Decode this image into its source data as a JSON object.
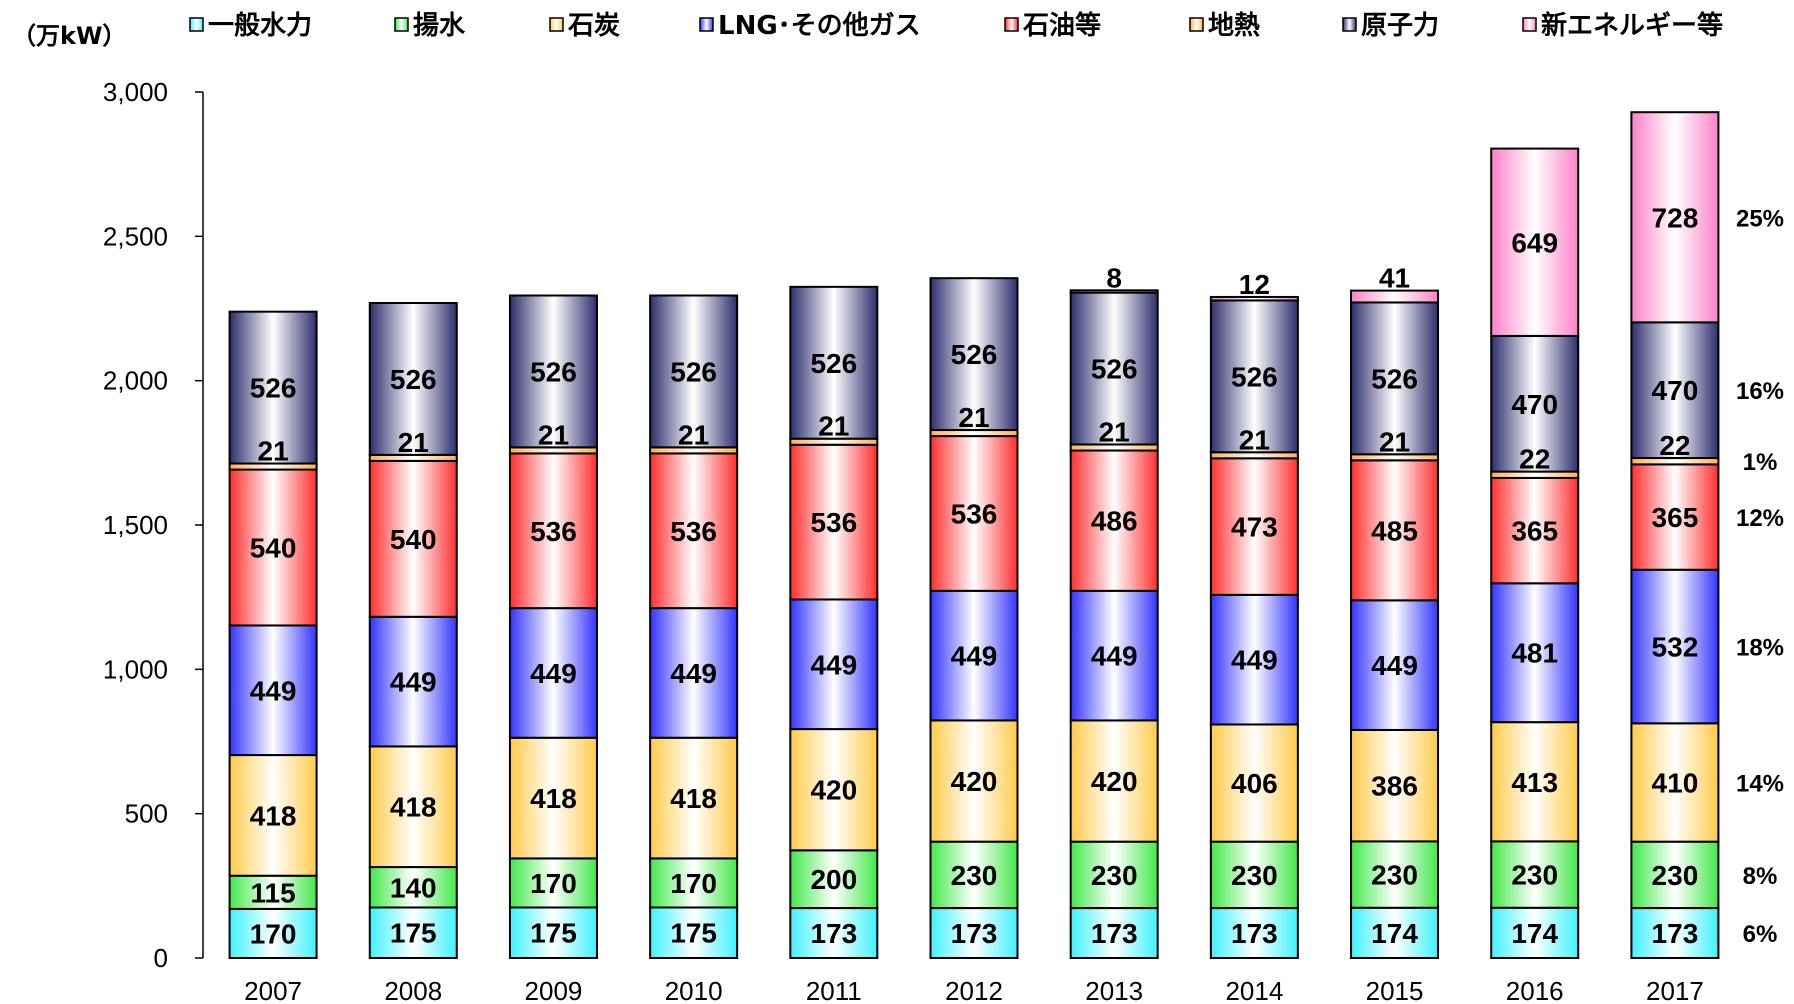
{
  "chart_data": {
    "type": "bar",
    "stacked": true,
    "unit_label": "（万kW）",
    "categories": [
      "2007",
      "2008",
      "2009",
      "2010",
      "2011",
      "2012",
      "2013",
      "2014",
      "2015",
      "2016",
      "2017"
    ],
    "ylim": [
      0,
      3000
    ],
    "yticks": [
      "0",
      "500",
      "1,000",
      "1,500",
      "2,000",
      "2,500",
      "3,000"
    ],
    "legend_position": "top",
    "series": [
      {
        "name": "一般水力",
        "color": "#3ff2ff",
        "values": [
          170,
          175,
          175,
          175,
          173,
          173,
          173,
          173,
          174,
          174,
          173
        ]
      },
      {
        "name": "揚水",
        "color": "#42e84a",
        "values": [
          115,
          140,
          170,
          170,
          200,
          230,
          230,
          230,
          230,
          230,
          230
        ]
      },
      {
        "name": "石炭",
        "color": "#ffca4a",
        "values": [
          418,
          418,
          418,
          418,
          420,
          420,
          420,
          406,
          386,
          413,
          410
        ]
      },
      {
        "name": "LNG･その他ガス",
        "color": "#3434ff",
        "values": [
          449,
          449,
          449,
          449,
          449,
          449,
          449,
          449,
          449,
          481,
          532
        ]
      },
      {
        "name": "石油等",
        "color": "#ff2e2e",
        "values": [
          540,
          540,
          536,
          536,
          536,
          536,
          486,
          473,
          485,
          365,
          365
        ]
      },
      {
        "name": "地熱",
        "color": "#ffb04a",
        "values": [
          21,
          21,
          21,
          21,
          21,
          21,
          21,
          21,
          21,
          22,
          22
        ]
      },
      {
        "name": "原子力",
        "color": "#2e2e6e",
        "values": [
          526,
          526,
          526,
          526,
          526,
          526,
          526,
          526,
          526,
          470,
          470
        ]
      },
      {
        "name": "新エネルギー等",
        "color": "#ff80c8",
        "values": [
          null,
          null,
          null,
          null,
          null,
          null,
          8,
          12,
          41,
          649,
          728
        ]
      }
    ],
    "share_labels": [
      "6%",
      "8%",
      "14%",
      "18%",
      "12%",
      "1%",
      "16%",
      "25%"
    ]
  }
}
